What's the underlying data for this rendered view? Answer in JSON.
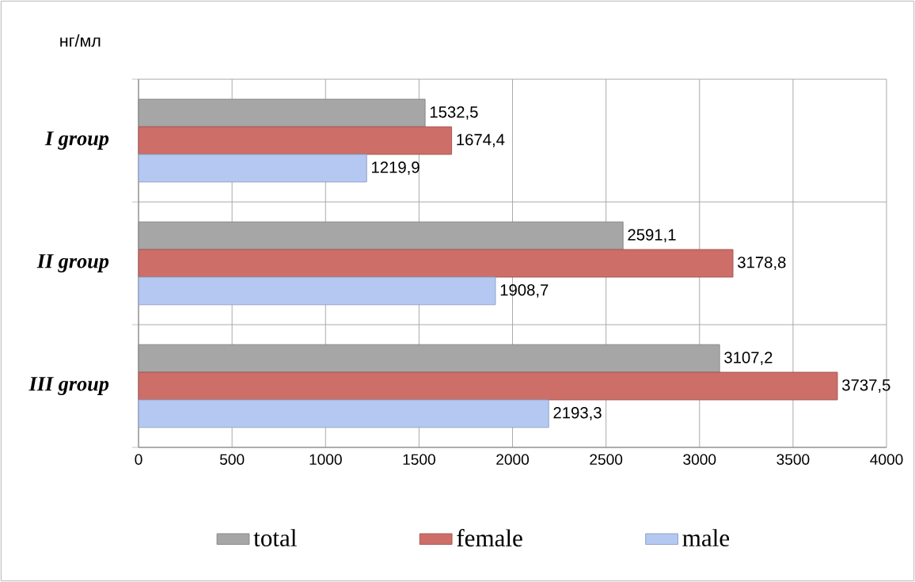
{
  "chart_data": {
    "type": "bar",
    "orientation": "horizontal",
    "ylabel": "нг/мл",
    "categories": [
      "I group",
      "II group",
      "III group"
    ],
    "series": [
      {
        "name": "total",
        "color": "#a6a6a6",
        "values": [
          1532.5,
          2591.1,
          3107.2
        ],
        "value_labels": [
          "1532,5",
          "2591,1",
          "3107,2"
        ]
      },
      {
        "name": "female",
        "color": "#cd6e68",
        "values": [
          1674.4,
          3178.8,
          3737.5
        ],
        "value_labels": [
          "1674,4",
          "3178,8",
          "3737,5"
        ]
      },
      {
        "name": "male",
        "color": "#b4c8f2",
        "values": [
          1219.9,
          1908.7,
          2193.3
        ],
        "value_labels": [
          "1219,9",
          "1908,7",
          "2193,3"
        ]
      }
    ],
    "xlim": [
      0,
      4000
    ],
    "xticks": [
      0,
      500,
      1000,
      1500,
      2000,
      2500,
      3000,
      3500,
      4000
    ],
    "grid": "x",
    "legend": "bottom"
  }
}
